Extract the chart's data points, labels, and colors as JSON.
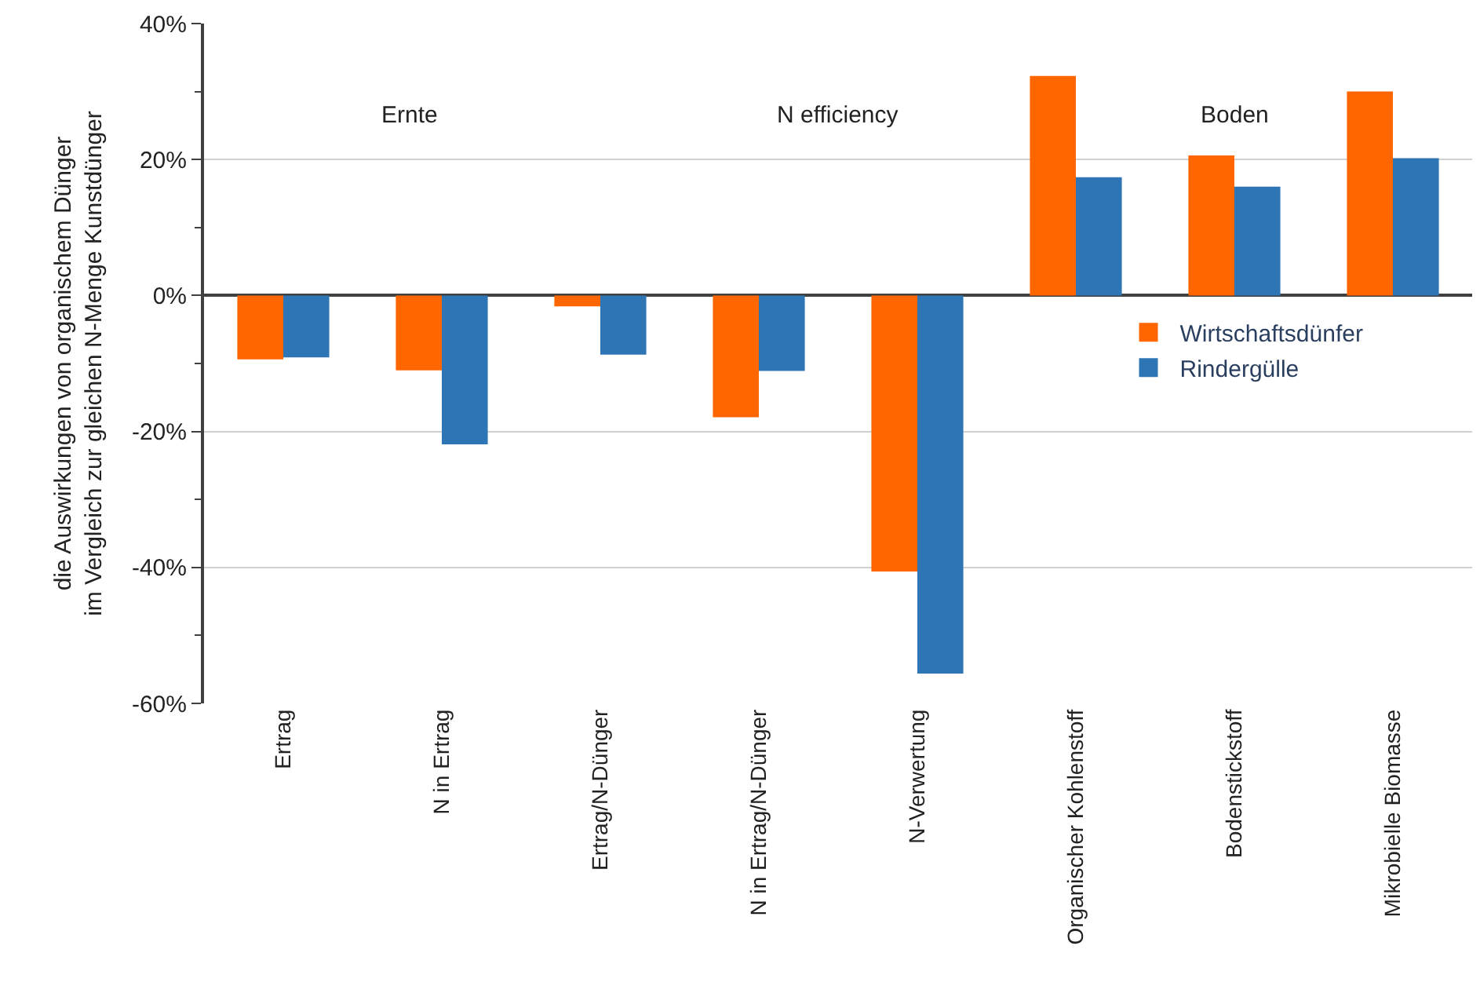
{
  "chart_data": {
    "type": "bar",
    "ylabel": "die Auswirkungen von organischem Dünger\nim Vergleich zur gleichen N-Menge Kunstdünger",
    "categories": [
      "Ertrag",
      "N in Ertrag",
      "Ertrag/N-Dünger",
      "N in Ertrag/N-Dünger",
      "N-Verwertung",
      "Organischer Kohlenstoff",
      "Bodenstickstoff",
      "Mikrobielle Biomasse"
    ],
    "series": [
      {
        "name": "Wirtschaftsdünfer",
        "color": "#ff6600",
        "values": [
          -9.4,
          -11.0,
          -1.6,
          -17.9,
          -40.6,
          32.3,
          20.6,
          30.0
        ]
      },
      {
        "name": "Rindergülle",
        "color": "#2e75b6",
        "values": [
          -9.1,
          -21.9,
          -8.7,
          -11.1,
          -55.6,
          17.4,
          16.0,
          20.2
        ]
      }
    ],
    "ylim": [
      -60,
      40
    ],
    "yticks": [
      {
        "value": -60,
        "label": "-60%"
      },
      {
        "value": -40,
        "label": "-40%"
      },
      {
        "value": -20,
        "label": "-20%"
      },
      {
        "value": 0,
        "label": "0%"
      },
      {
        "value": 20,
        "label": "20%"
      },
      {
        "value": 40,
        "label": "40%"
      }
    ],
    "grid": "y",
    "legend": "right",
    "annotations": [
      "Ernte",
      "N efficiency",
      "Boden"
    ]
  }
}
